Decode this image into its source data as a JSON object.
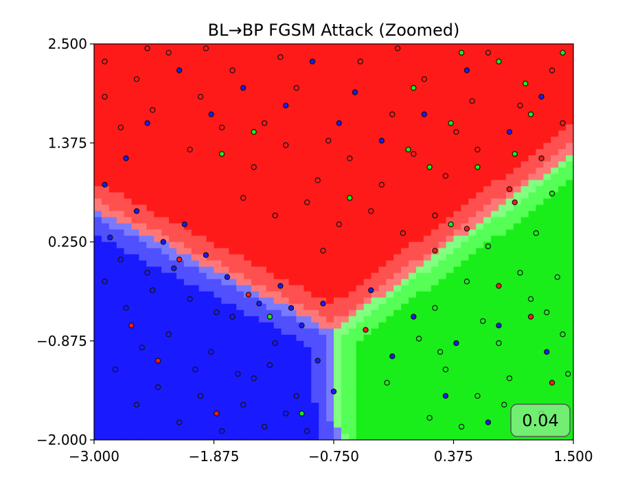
{
  "chart_data": {
    "type": "scatter",
    "title": "BL→BP FGSM Attack (Zoomed)",
    "xlabel": "",
    "ylabel": "",
    "xlim": [
      -3.0,
      1.5
    ],
    "ylim": [
      -2.0,
      2.5
    ],
    "xticks": [
      "−3.000",
      "−1.875",
      "−0.750",
      "0.375",
      "1.500"
    ],
    "yticks": [
      "−2.000",
      "−0.875",
      "0.250",
      "1.375",
      "2.500"
    ],
    "xtick_values": [
      -3.0,
      -1.875,
      -0.75,
      0.375,
      1.5
    ],
    "ytick_values": [
      -2.0,
      -0.875,
      0.25,
      1.375,
      2.5
    ],
    "score_label": "0.04",
    "grid": false,
    "background_regions": {
      "description_colors": {
        "red_class": "#ff1a1a",
        "red_boundary": "#ff5050",
        "red_edge": "#ff7878",
        "blue_class": "#1a1aff",
        "blue_boundary": "#5050ff",
        "blue_edge": "#7a7aff",
        "green_class": "#1aee1a",
        "green_boundary": "#55ff55",
        "green_edge": "#80ff80"
      }
    },
    "series": [
      {
        "color": "#ff1a1a",
        "points": [
          [
            -2.9,
            2.3
          ],
          [
            -2.6,
            2.1
          ],
          [
            -2.3,
            2.4
          ],
          [
            -2.0,
            1.9
          ],
          [
            -1.7,
            2.2
          ],
          [
            -1.4,
            1.6
          ],
          [
            -1.1,
            2.0
          ],
          [
            -0.8,
            1.4
          ],
          [
            -0.5,
            2.3
          ],
          [
            -0.2,
            1.7
          ],
          [
            0.1,
            2.1
          ],
          [
            0.4,
            1.5
          ],
          [
            0.7,
            2.4
          ],
          [
            1.0,
            1.8
          ],
          [
            1.3,
            2.2
          ],
          [
            -2.75,
            1.55
          ],
          [
            -2.45,
            1.75
          ],
          [
            -2.1,
            1.3
          ],
          [
            -1.8,
            1.55
          ],
          [
            -1.5,
            1.1
          ],
          [
            -1.2,
            1.35
          ],
          [
            -0.9,
            0.95
          ],
          [
            -0.6,
            1.2
          ],
          [
            -0.3,
            0.9
          ],
          [
            0.0,
            1.25
          ],
          [
            0.3,
            1.0
          ],
          [
            0.6,
            1.3
          ],
          [
            0.9,
            0.85
          ],
          [
            1.2,
            1.2
          ],
          [
            -1.6,
            0.75
          ],
          [
            -1.3,
            0.55
          ],
          [
            -1.0,
            0.7
          ],
          [
            -0.7,
            0.45
          ],
          [
            -0.4,
            0.6
          ],
          [
            -0.1,
            0.35
          ],
          [
            0.2,
            0.55
          ],
          [
            0.5,
            0.4
          ],
          [
            -2.2,
            0.05
          ],
          [
            -1.55,
            -0.35
          ],
          [
            -2.65,
            -0.7
          ],
          [
            -2.4,
            -1.1
          ],
          [
            -1.85,
            -1.7
          ],
          [
            0.8,
            -0.25
          ],
          [
            1.1,
            -0.6
          ],
          [
            -0.45,
            -0.75
          ],
          [
            1.3,
            -1.35
          ],
          [
            0.95,
            0.7
          ],
          [
            -0.85,
            0.15
          ],
          [
            -2.9,
            1.9
          ],
          [
            -0.15,
            2.45
          ],
          [
            0.55,
            1.85
          ],
          [
            1.4,
            1.6
          ],
          [
            -1.95,
            2.45
          ],
          [
            -1.25,
            2.35
          ],
          [
            -2.5,
            2.45
          ],
          [
            0.2,
            0.15
          ]
        ]
      },
      {
        "color": "#1a1aff",
        "points": [
          [
            -2.9,
            -0.2
          ],
          [
            -2.7,
            -0.5
          ],
          [
            -2.5,
            -0.1
          ],
          [
            -2.3,
            -0.8
          ],
          [
            -2.1,
            -0.4
          ],
          [
            -1.9,
            -1.0
          ],
          [
            -1.7,
            -0.6
          ],
          [
            -1.5,
            -1.3
          ],
          [
            -1.3,
            -0.9
          ],
          [
            -1.1,
            -1.5
          ],
          [
            -0.9,
            -1.1
          ],
          [
            -2.8,
            -1.2
          ],
          [
            -2.6,
            -1.6
          ],
          [
            -2.4,
            -1.4
          ],
          [
            -2.2,
            -1.8
          ],
          [
            -2.0,
            -1.5
          ],
          [
            -1.8,
            -1.9
          ],
          [
            -1.6,
            -1.6
          ],
          [
            -1.4,
            -1.85
          ],
          [
            -1.2,
            -1.7
          ],
          [
            -1.0,
            -1.9
          ],
          [
            -2.85,
            0.3
          ],
          [
            -2.6,
            0.6
          ],
          [
            -2.35,
            0.25
          ],
          [
            -2.15,
            0.45
          ],
          [
            -1.95,
            0.1
          ],
          [
            -1.75,
            -0.15
          ],
          [
            -1.45,
            -0.45
          ],
          [
            -1.25,
            -0.25
          ],
          [
            -1.05,
            -0.7
          ],
          [
            -0.85,
            -0.45
          ],
          [
            -2.9,
            0.9
          ],
          [
            -2.7,
            1.2
          ],
          [
            -2.5,
            1.6
          ],
          [
            -2.2,
            2.2
          ],
          [
            -1.9,
            1.7
          ],
          [
            -1.6,
            2.0
          ],
          [
            -1.2,
            1.8
          ],
          [
            -0.7,
            1.6
          ],
          [
            -0.3,
            1.4
          ],
          [
            0.1,
            1.7
          ],
          [
            0.5,
            2.2
          ],
          [
            0.9,
            1.5
          ],
          [
            1.2,
            1.9
          ],
          [
            -0.4,
            -0.3
          ],
          [
            0.0,
            -0.6
          ],
          [
            0.4,
            -0.9
          ],
          [
            0.8,
            -0.7
          ],
          [
            1.25,
            -1.0
          ],
          [
            0.3,
            -1.5
          ],
          [
            0.7,
            -1.8
          ],
          [
            -0.2,
            -1.05
          ],
          [
            -2.45,
            -0.3
          ],
          [
            -1.85,
            -0.55
          ],
          [
            -1.35,
            -1.15
          ],
          [
            -0.75,
            -1.45
          ],
          [
            -2.05,
            -1.2
          ],
          [
            -2.55,
            -0.95
          ],
          [
            -1.65,
            -1.25
          ],
          [
            -1.15,
            -0.5
          ],
          [
            -2.75,
            0.05
          ],
          [
            -2.25,
            -0.05
          ],
          [
            -0.95,
            2.3
          ],
          [
            -0.55,
            1.95
          ]
        ]
      },
      {
        "color": "#1aee1a",
        "points": [
          [
            0.2,
            -0.5
          ],
          [
            0.5,
            -0.2
          ],
          [
            0.8,
            -0.9
          ],
          [
            1.1,
            -0.4
          ],
          [
            1.4,
            -0.8
          ],
          [
            0.3,
            -1.2
          ],
          [
            0.6,
            -1.5
          ],
          [
            0.9,
            -1.3
          ],
          [
            1.2,
            -1.7
          ],
          [
            1.45,
            -1.25
          ],
          [
            0.05,
            -0.85
          ],
          [
            -0.25,
            -1.35
          ],
          [
            0.15,
            -1.75
          ],
          [
            0.45,
            -1.85
          ],
          [
            1.0,
            -0.1
          ],
          [
            1.35,
            -0.15
          ],
          [
            0.7,
            0.2
          ],
          [
            1.15,
            0.35
          ],
          [
            0.35,
            0.45
          ],
          [
            0.0,
            2.0
          ],
          [
            0.35,
            1.6
          ],
          [
            0.8,
            2.3
          ],
          [
            1.1,
            1.7
          ],
          [
            1.4,
            2.4
          ],
          [
            0.6,
            1.1
          ],
          [
            0.95,
            1.25
          ],
          [
            1.3,
            0.8
          ],
          [
            0.45,
            2.4
          ],
          [
            -0.05,
            1.3
          ],
          [
            -0.6,
            0.75
          ],
          [
            -1.5,
            1.5
          ],
          [
            -1.35,
            -0.6
          ],
          [
            -1.05,
            -1.7
          ],
          [
            -1.8,
            1.25
          ],
          [
            0.65,
            -0.65
          ],
          [
            1.25,
            -0.55
          ],
          [
            0.85,
            -1.6
          ],
          [
            0.25,
            -1.0
          ],
          [
            1.05,
            2.05
          ],
          [
            0.15,
            1.1
          ]
        ]
      }
    ]
  }
}
